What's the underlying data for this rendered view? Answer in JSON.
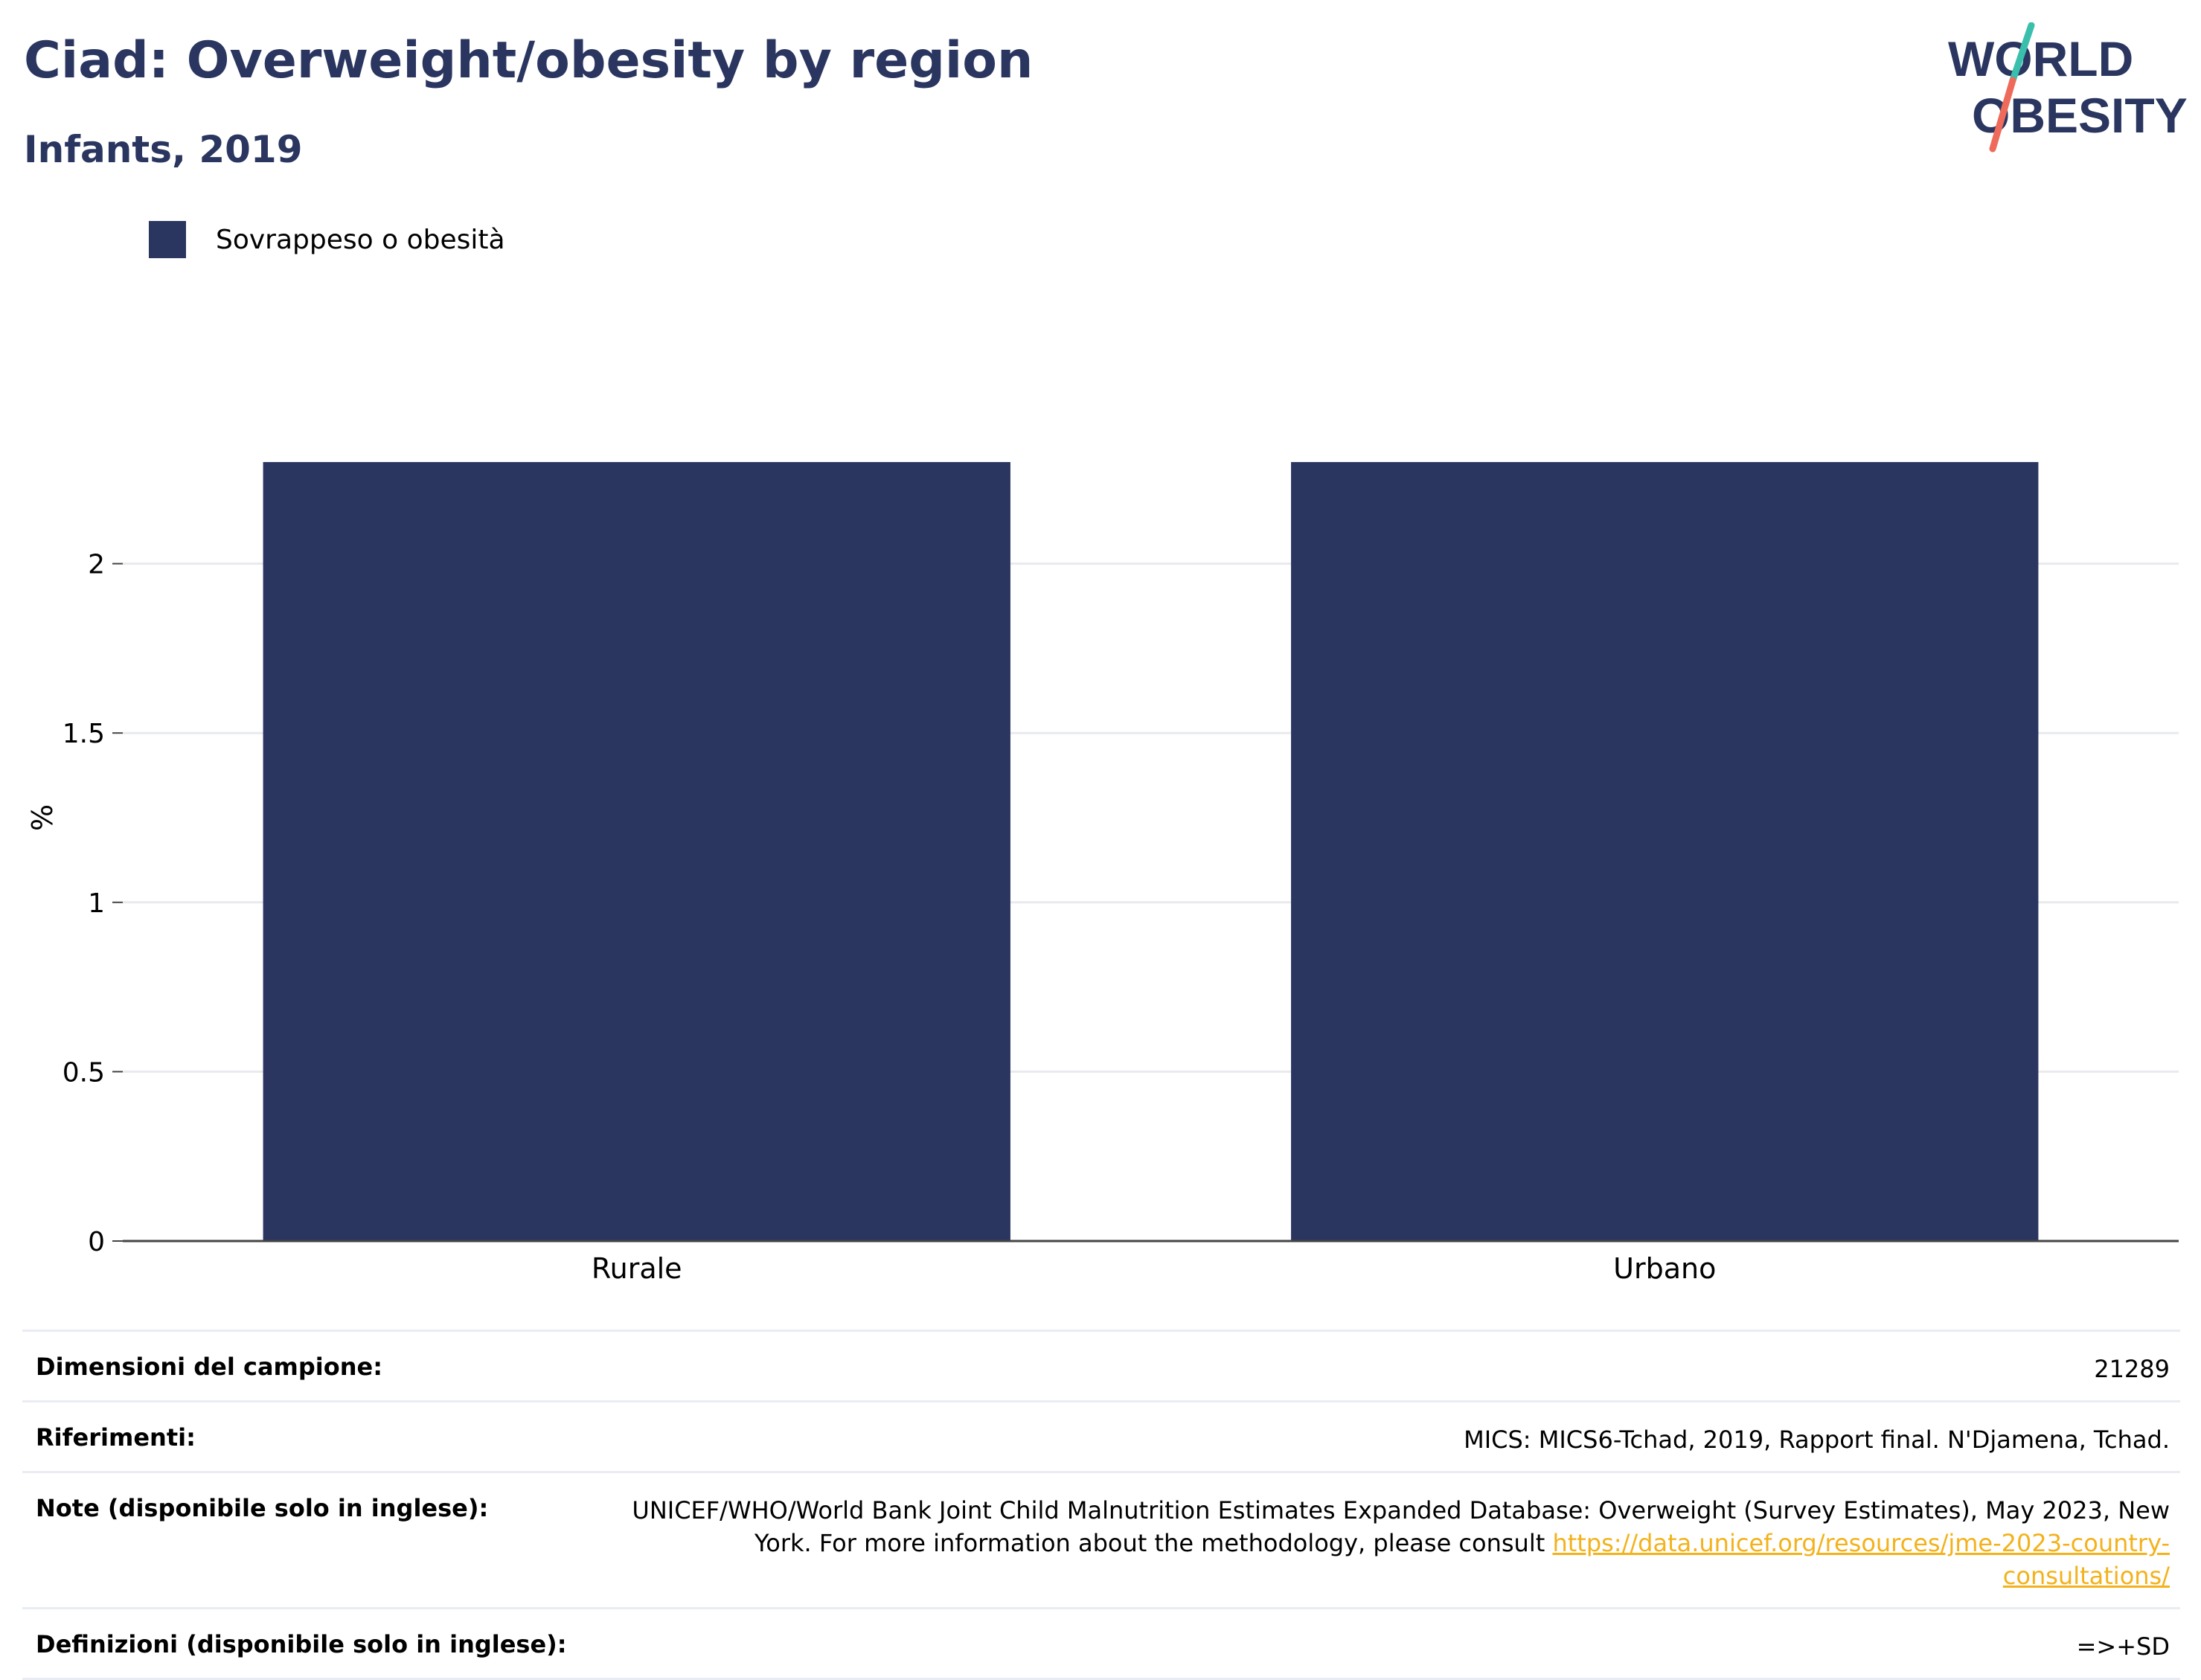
{
  "header": {
    "title": "Ciad: Overweight/obesity by region",
    "subtitle": "Infants, 2019"
  },
  "logo": {
    "line1": "WORLD",
    "line2": "OBESITY",
    "colors": {
      "text": "#2a3660",
      "teal": "#3bbfad",
      "coral": "#ee6a5a"
    }
  },
  "legend": {
    "items": [
      {
        "label": "Sovrappeso o obesità",
        "color": "#2a3660"
      }
    ]
  },
  "chart_data": {
    "type": "bar",
    "categories": [
      "Rurale",
      "Urbano"
    ],
    "series": [
      {
        "name": "Sovrappeso o obesità",
        "values": [
          2.3,
          2.3
        ]
      }
    ],
    "ylabel": "%",
    "xlabel": "",
    "ylim": [
      0,
      2.5
    ],
    "yticks": [
      "0",
      "0.5",
      "1",
      "1.5",
      "2"
    ],
    "grid": true,
    "legend_position": "top-left",
    "bar_color": "#2a3660"
  },
  "meta": {
    "sample_size": {
      "label": "Dimensioni del campione:",
      "value": "21289"
    },
    "references": {
      "label": "Riferimenti:",
      "value": "MICS: MICS6-Tchad, 2019, Rapport final. N'Djamena, Tchad."
    },
    "notes": {
      "label": "Note (disponibile solo in inglese):",
      "value": "UNICEF/WHO/World Bank Joint Child Malnutrition Estimates Expanded Database: Overweight (Survey Estimates), May 2023, New York. For more information about the methodology, please consult ",
      "link": "https://data.unicef.org/resources/jme-2023-country-consultations/"
    },
    "definitions": {
      "label": "Definizioni (disponibile solo in inglese):",
      "value": "=>+SD"
    }
  }
}
